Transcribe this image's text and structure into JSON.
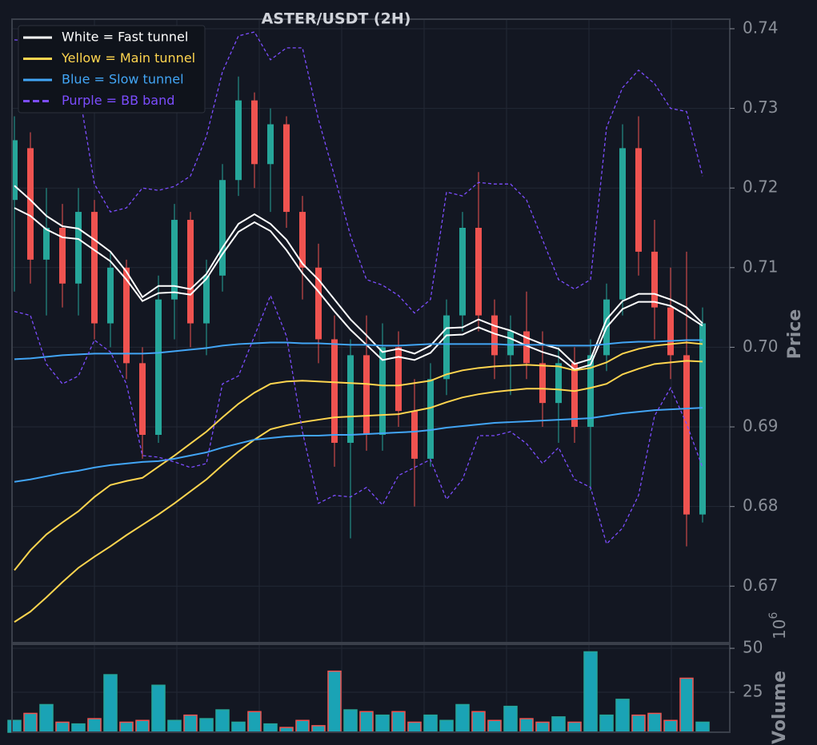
{
  "chart_data": [
    {
      "type": "candlestick",
      "title": "ASTER/USDT (2H)",
      "ylabel": "Price",
      "ylim": [
        0.6629,
        0.7412
      ],
      "yticks": [
        0.67,
        0.68,
        0.69,
        {
          "value": 0.7,
          "label": "0.70"
        },
        0.71,
        0.72,
        0.73,
        0.74
      ],
      "grid": true,
      "legend": "upper left",
      "up_color": "#26a69a",
      "down_color": "#ef5350",
      "open": [
        0.7185,
        0.725,
        0.711,
        0.715,
        0.708,
        0.717,
        0.703,
        0.71,
        0.698,
        0.689,
        0.706,
        0.716,
        0.703,
        0.709,
        0.721,
        0.731,
        0.723,
        0.728,
        0.717,
        0.71,
        0.701,
        0.688,
        0.699,
        0.689,
        0.7,
        0.692,
        0.686,
        0.696,
        0.704,
        0.715,
        0.704,
        0.699,
        0.702,
        0.698,
        0.693,
        0.698,
        0.69,
        0.699,
        0.706,
        0.725,
        0.712,
        0.705,
        0.699,
        0.679
      ],
      "high": [
        0.729,
        0.727,
        0.72,
        0.718,
        0.72,
        0.7185,
        0.712,
        0.711,
        0.7,
        0.709,
        0.718,
        0.717,
        0.711,
        0.723,
        0.734,
        0.732,
        0.73,
        0.729,
        0.719,
        0.713,
        0.704,
        0.701,
        0.704,
        0.703,
        0.702,
        0.696,
        0.698,
        0.706,
        0.717,
        0.722,
        0.706,
        0.704,
        0.707,
        0.702,
        0.7,
        0.7,
        0.701,
        0.708,
        0.728,
        0.729,
        0.716,
        0.71,
        0.712,
        0.705
      ],
      "low": [
        0.707,
        0.708,
        0.704,
        0.705,
        0.704,
        0.701,
        0.7,
        0.696,
        0.686,
        0.688,
        0.701,
        0.7,
        0.699,
        0.707,
        0.719,
        0.72,
        0.717,
        0.715,
        0.706,
        0.698,
        0.685,
        0.676,
        0.687,
        0.687,
        0.69,
        0.68,
        0.685,
        0.694,
        0.702,
        0.702,
        0.696,
        0.694,
        0.696,
        0.69,
        0.688,
        0.688,
        0.682,
        0.697,
        0.704,
        0.709,
        0.701,
        0.696,
        0.675,
        0.678
      ],
      "close": [
        0.726,
        0.711,
        0.715,
        0.708,
        0.717,
        0.703,
        0.71,
        0.698,
        0.689,
        0.706,
        0.716,
        0.703,
        0.709,
        0.721,
        0.731,
        0.723,
        0.728,
        0.717,
        0.71,
        0.701,
        0.688,
        0.699,
        0.689,
        0.7,
        0.692,
        0.686,
        0.696,
        0.704,
        0.715,
        0.704,
        0.699,
        0.702,
        0.698,
        0.693,
        0.698,
        0.69,
        0.699,
        0.706,
        0.725,
        0.712,
        0.705,
        0.699,
        0.679,
        0.703
      ],
      "overlays": [
        {
          "name": "White = Fast tunnel",
          "color": "#ffffff",
          "dashed": false,
          "upper": [
            0.7203,
            0.7185,
            0.7165,
            0.7152,
            0.7149,
            0.7135,
            0.712,
            0.7095,
            0.7063,
            0.7077,
            0.7077,
            0.7073,
            0.7092,
            0.7125,
            0.7155,
            0.7167,
            0.7155,
            0.7135,
            0.7105,
            0.7085,
            0.706,
            0.7035,
            0.7015,
            0.6994,
            0.6998,
            0.6992,
            0.7002,
            0.7024,
            0.7025,
            0.7035,
            0.7027,
            0.7021,
            0.7012,
            0.7004,
            0.6998,
            0.6979,
            0.6985,
            0.7035,
            0.7058,
            0.7067,
            0.7067,
            0.706,
            0.705,
            0.703
          ],
          "lower": [
            0.7175,
            0.7165,
            0.7148,
            0.7138,
            0.7136,
            0.7122,
            0.7108,
            0.7085,
            0.7058,
            0.7068,
            0.7069,
            0.7066,
            0.7086,
            0.7117,
            0.7145,
            0.7157,
            0.7146,
            0.7122,
            0.7093,
            0.707,
            0.7045,
            0.7022,
            0.7003,
            0.6984,
            0.6988,
            0.6984,
            0.6993,
            0.7015,
            0.7016,
            0.7025,
            0.7017,
            0.7011,
            0.7002,
            0.6994,
            0.6988,
            0.6972,
            0.6978,
            0.7025,
            0.7048,
            0.7057,
            0.7057,
            0.7052,
            0.704,
            0.7027
          ]
        },
        {
          "name": "Yellow = Main tunnel",
          "color": "#ffd54f",
          "dashed": false,
          "upper": [
            0.672,
            0.6745,
            0.6765,
            0.678,
            0.6794,
            0.6812,
            0.6827,
            0.6832,
            0.6836,
            0.685,
            0.6864,
            0.6879,
            0.6894,
            0.6912,
            0.6929,
            0.6943,
            0.6954,
            0.6957,
            0.6958,
            0.6957,
            0.6956,
            0.6955,
            0.6954,
            0.6952,
            0.6952,
            0.6955,
            0.6958,
            0.6966,
            0.6971,
            0.6974,
            0.6976,
            0.6977,
            0.6978,
            0.6977,
            0.6976,
            0.6971,
            0.6974,
            0.6981,
            0.6992,
            0.6998,
            0.7002,
            0.7004,
            0.7006,
            0.7004
          ],
          "lower": [
            0.6655,
            0.6668,
            0.6686,
            0.6705,
            0.6723,
            0.6737,
            0.675,
            0.6764,
            0.6777,
            0.679,
            0.6804,
            0.6819,
            0.6834,
            0.6852,
            0.6869,
            0.6884,
            0.6897,
            0.6902,
            0.6906,
            0.6909,
            0.6912,
            0.6913,
            0.6914,
            0.6915,
            0.6916,
            0.692,
            0.6924,
            0.6931,
            0.6937,
            0.6941,
            0.6944,
            0.6946,
            0.6948,
            0.6948,
            0.6947,
            0.6945,
            0.6949,
            0.6954,
            0.6966,
            0.6973,
            0.6979,
            0.6981,
            0.6983,
            0.6982
          ]
        },
        {
          "name": "Blue = Slow tunnel",
          "color": "#42a5f5",
          "dashed": false,
          "upper": [
            0.6985,
            0.6986,
            0.6988,
            0.699,
            0.6991,
            0.6992,
            0.6992,
            0.6992,
            0.6992,
            0.6993,
            0.6995,
            0.6997,
            0.6999,
            0.7002,
            0.7004,
            0.7005,
            0.7006,
            0.7006,
            0.7005,
            0.7005,
            0.7004,
            0.7003,
            0.7003,
            0.7002,
            0.7002,
            0.7003,
            0.7004,
            0.7004,
            0.7004,
            0.7004,
            0.7004,
            0.7003,
            0.7003,
            0.7003,
            0.7002,
            0.7002,
            0.7002,
            0.7004,
            0.7006,
            0.7007,
            0.7007,
            0.7008,
            0.7009,
            0.7009
          ],
          "lower": [
            0.6831,
            0.6834,
            0.6838,
            0.6842,
            0.6845,
            0.6849,
            0.6852,
            0.6854,
            0.6856,
            0.6857,
            0.686,
            0.6864,
            0.6868,
            0.6874,
            0.6879,
            0.6884,
            0.6886,
            0.6888,
            0.6889,
            0.6889,
            0.689,
            0.689,
            0.6891,
            0.6892,
            0.6893,
            0.6894,
            0.6896,
            0.6899,
            0.6901,
            0.6903,
            0.6905,
            0.6906,
            0.6907,
            0.6908,
            0.6909,
            0.691,
            0.6911,
            0.6914,
            0.6917,
            0.6919,
            0.6921,
            0.6922,
            0.6923,
            0.6924
          ]
        },
        {
          "name": "Purple = BB band",
          "color": "#7c4dff",
          "dashed": true,
          "upper": [
            0.7386,
            0.7385,
            0.7376,
            0.7355,
            0.7326,
            0.7205,
            0.717,
            0.7175,
            0.72,
            0.7197,
            0.7202,
            0.7215,
            0.7265,
            0.7346,
            0.7391,
            0.7396,
            0.7361,
            0.7376,
            0.7376,
            0.7286,
            0.7215,
            0.714,
            0.7085,
            0.7078,
            0.7065,
            0.7043,
            0.706,
            0.7195,
            0.719,
            0.7207,
            0.7205,
            0.7205,
            0.7185,
            0.7135,
            0.7085,
            0.7073,
            0.7085,
            0.7276,
            0.7326,
            0.7348,
            0.7331,
            0.73,
            0.7296,
            0.7215
          ],
          "lower": [
            0.7045,
            0.704,
            0.6979,
            0.6954,
            0.6964,
            0.7009,
            0.6994,
            0.6954,
            0.6864,
            0.6862,
            0.6856,
            0.6849,
            0.6854,
            0.6954,
            0.6964,
            0.7014,
            0.7065,
            0.7014,
            0.6894,
            0.6804,
            0.6814,
            0.6812,
            0.6824,
            0.6802,
            0.6839,
            0.6849,
            0.6859,
            0.6809,
            0.6834,
            0.6889,
            0.6889,
            0.6894,
            0.6879,
            0.6854,
            0.6874,
            0.6834,
            0.6824,
            0.6753,
            0.6773,
            0.6814,
            0.6914,
            0.6949,
            0.6904,
            0.6849
          ]
        }
      ]
    },
    {
      "type": "bar",
      "ylabel": "Volume",
      "offset": {
        "base": "10",
        "exponent": "6"
      },
      "ylim": [
        2.3,
        52.3
      ],
      "yticks": [
        25,
        50
      ],
      "grid": true,
      "values": [
        9,
        13,
        18,
        8,
        7,
        10,
        35,
        8,
        9,
        29,
        9,
        12,
        10,
        15,
        8,
        14,
        7,
        5,
        9,
        6,
        37,
        15,
        14,
        12,
        14,
        8,
        12,
        9,
        18,
        14,
        9,
        17,
        10,
        8,
        11,
        8,
        48,
        12,
        21,
        12,
        13,
        9,
        33,
        8
      ]
    }
  ]
}
